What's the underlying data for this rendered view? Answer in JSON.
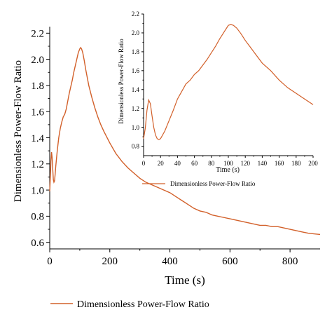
{
  "colors": {
    "series": "#d2602a",
    "axis": "#000000",
    "background": "#ffffff"
  },
  "chart_data": [
    {
      "id": "main",
      "type": "line",
      "xlabel": "Time (s)",
      "ylabel": "Dimensionless Power-Flow Ratio",
      "xlim": [
        0,
        900
      ],
      "ylim": [
        0.55,
        2.25
      ],
      "xticks": [
        0,
        200,
        400,
        600,
        800
      ],
      "yticks": [
        0.6,
        0.8,
        1.0,
        1.2,
        1.4,
        1.6,
        1.8,
        2.0,
        2.2
      ],
      "ytick_labels": [
        "0.6",
        "0.8",
        "1.0",
        "1.2",
        "1.4",
        "1.6",
        "1.8",
        "2.0",
        "2.2"
      ],
      "legend_position": "bottom-left",
      "series": [
        {
          "name": "Dimensionless Power-Flow Ratio",
          "x": [
            0,
            2,
            4,
            6,
            8,
            10,
            12,
            14,
            16,
            18,
            20,
            25,
            30,
            35,
            40,
            45,
            50,
            55,
            60,
            65,
            70,
            75,
            80,
            85,
            90,
            95,
            100,
            103,
            106,
            110,
            115,
            120,
            125,
            130,
            140,
            150,
            160,
            170,
            180,
            200,
            220,
            240,
            260,
            280,
            300,
            320,
            340,
            360,
            380,
            400,
            420,
            440,
            460,
            480,
            500,
            520,
            540,
            560,
            580,
            600,
            620,
            640,
            660,
            680,
            700,
            720,
            740,
            760,
            780,
            800,
            820,
            840,
            860,
            880,
            900
          ],
          "y": [
            0.99,
            1.1,
            1.22,
            1.29,
            1.25,
            1.16,
            1.08,
            1.06,
            1.07,
            1.12,
            1.18,
            1.3,
            1.4,
            1.47,
            1.52,
            1.56,
            1.58,
            1.62,
            1.68,
            1.74,
            1.79,
            1.84,
            1.9,
            1.95,
            2.0,
            2.05,
            2.08,
            2.09,
            2.08,
            2.05,
            1.99,
            1.92,
            1.86,
            1.8,
            1.71,
            1.63,
            1.56,
            1.5,
            1.45,
            1.36,
            1.28,
            1.22,
            1.17,
            1.13,
            1.09,
            1.06,
            1.04,
            1.02,
            1.0,
            0.98,
            0.95,
            0.92,
            0.89,
            0.86,
            0.84,
            0.83,
            0.81,
            0.8,
            0.79,
            0.78,
            0.77,
            0.76,
            0.75,
            0.74,
            0.73,
            0.73,
            0.72,
            0.72,
            0.71,
            0.7,
            0.69,
            0.68,
            0.67,
            0.665,
            0.66
          ]
        }
      ]
    },
    {
      "id": "inset",
      "type": "line",
      "xlabel": "Time (s)",
      "ylabel": "Dimensionless Power-Flow Ratio",
      "xlim": [
        0,
        200
      ],
      "ylim": [
        0.7,
        2.2
      ],
      "xticks": [
        0,
        20,
        40,
        60,
        80,
        100,
        120,
        140,
        160,
        180,
        200
      ],
      "yticks": [
        0.8,
        1.0,
        1.2,
        1.4,
        1.6,
        1.8,
        2.0,
        2.2
      ],
      "ytick_labels": [
        "0.8",
        "1.0",
        "1.2",
        "1.4",
        "1.6",
        "1.8",
        "2.0",
        "2.2"
      ],
      "legend_position": "bottom",
      "series": [
        {
          "name": "Dimensionless Power-Flow Ratio",
          "x": [
            0,
            2,
            4,
            6,
            8,
            10,
            12,
            14,
            16,
            18,
            20,
            25,
            30,
            35,
            40,
            45,
            50,
            55,
            60,
            65,
            70,
            75,
            80,
            85,
            90,
            95,
            100,
            103,
            106,
            110,
            115,
            120,
            125,
            130,
            140,
            150,
            160,
            170,
            180,
            190,
            200
          ],
          "y": [
            0.88,
            0.99,
            1.18,
            1.29,
            1.25,
            1.12,
            1.0,
            0.92,
            0.88,
            0.87,
            0.88,
            0.96,
            1.07,
            1.18,
            1.3,
            1.38,
            1.46,
            1.5,
            1.56,
            1.6,
            1.66,
            1.72,
            1.79,
            1.86,
            1.94,
            2.01,
            2.08,
            2.09,
            2.08,
            2.05,
            1.99,
            1.92,
            1.86,
            1.8,
            1.68,
            1.6,
            1.5,
            1.42,
            1.36,
            1.3,
            1.24
          ]
        }
      ]
    }
  ]
}
